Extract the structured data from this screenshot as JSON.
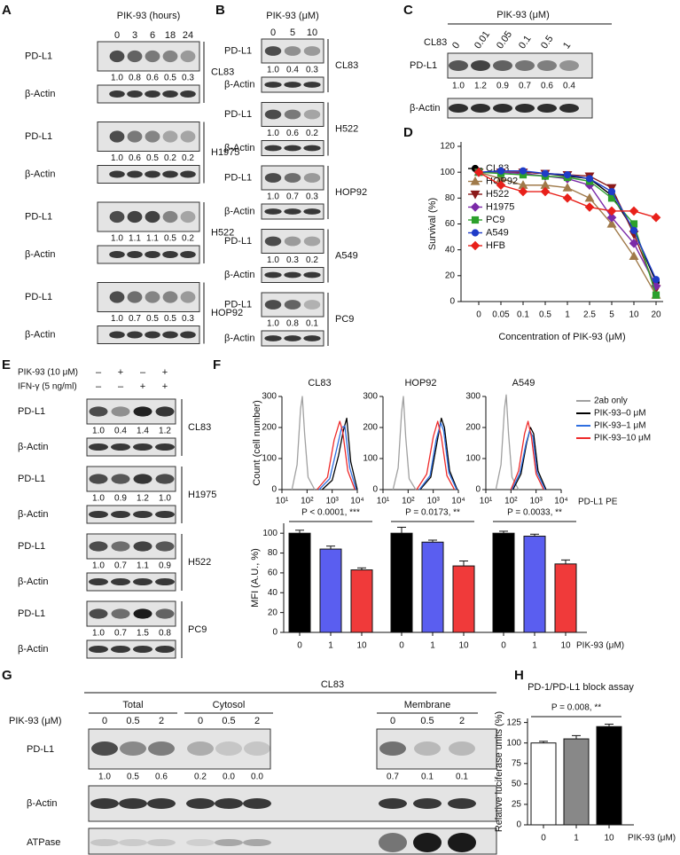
{
  "panel_labels": [
    "A",
    "B",
    "C",
    "D",
    "E",
    "F",
    "G",
    "H"
  ],
  "blot_a": {
    "header": "PIK-93 (hours)",
    "target": "PD-L1",
    "control": "β-Actin",
    "lanes": [
      "0",
      "3",
      "6",
      "18",
      "24"
    ],
    "groups": [
      {
        "cell": "CL83",
        "quant": [
          "1.0",
          "0.8",
          "0.6",
          "0.5",
          "0.3"
        ]
      },
      {
        "cell": "H1975",
        "quant": [
          "1.0",
          "0.6",
          "0.5",
          "0.2",
          "0.2"
        ]
      },
      {
        "cell": "H522",
        "quant": [
          "1.0",
          "1.1",
          "1.1",
          "0.5",
          "0.2"
        ]
      },
      {
        "cell": "HOP92",
        "quant": [
          "1.0",
          "0.7",
          "0.5",
          "0.5",
          "0.3"
        ]
      }
    ]
  },
  "blot_b": {
    "header": "PIK-93 (μM)",
    "target": "PD-L1",
    "control": "β-Actin",
    "lanes": [
      "0",
      "5",
      "10"
    ],
    "groups": [
      {
        "cell": "CL83",
        "quant": [
          "1.0",
          "0.4",
          "0.3"
        ]
      },
      {
        "cell": "H522",
        "quant": [
          "1.0",
          "0.6",
          "0.2"
        ]
      },
      {
        "cell": "HOP92",
        "quant": [
          "1.0",
          "0.7",
          "0.3"
        ]
      },
      {
        "cell": "A549",
        "quant": [
          "1.0",
          "0.3",
          "0.2"
        ]
      },
      {
        "cell": "PC9",
        "quant": [
          "1.0",
          "0.8",
          "0.1"
        ]
      }
    ]
  },
  "blot_c": {
    "header": "PIK-93 (μM)",
    "cell": "CL83",
    "target": "PD-L1",
    "control": "β-Actin",
    "lanes": [
      "0",
      "0.01",
      "0.05",
      "0.1",
      "0.5",
      "1"
    ],
    "quant": [
      "1.0",
      "1.2",
      "0.9",
      "0.7",
      "0.6",
      "0.4"
    ]
  },
  "blot_e": {
    "treatments": [
      {
        "label": "PIK-93 (10 μM)",
        "signs": [
          "–",
          "+",
          "–",
          "+"
        ]
      },
      {
        "label": "IFN-γ (5 ng/ml)",
        "signs": [
          "–",
          "–",
          "+",
          "+"
        ]
      }
    ],
    "target": "PD-L1",
    "control": "β-Actin",
    "groups": [
      {
        "cell": "CL83",
        "quant": [
          "1.0",
          "0.4",
          "1.4",
          "1.2"
        ]
      },
      {
        "cell": "H1975",
        "quant": [
          "1.0",
          "0.9",
          "1.2",
          "1.0"
        ]
      },
      {
        "cell": "H522",
        "quant": [
          "1.0",
          "0.7",
          "1.1",
          "0.9"
        ]
      },
      {
        "cell": "PC9",
        "quant": [
          "1.0",
          "0.7",
          "1.5",
          "0.8"
        ]
      }
    ]
  },
  "blot_g": {
    "title": "CL83",
    "dose_label": "PIK-93 (μM)",
    "fractions": [
      {
        "name": "Total",
        "lanes": [
          "0",
          "0.5",
          "2"
        ]
      },
      {
        "name": "Cytosol",
        "lanes": [
          "0",
          "0.5",
          "2"
        ]
      },
      {
        "name": "Membrane",
        "lanes": [
          "0",
          "0.5",
          "2"
        ]
      }
    ],
    "rows": [
      "PD-L1",
      "β-Actin",
      "ATPase"
    ],
    "quant": [
      "1.0",
      "0.5",
      "0.6",
      "0.2",
      "0.0",
      "0.0",
      "0.7",
      "0.1",
      "0.1"
    ]
  },
  "chart_data": [
    {
      "type": "line",
      "xlabel": "Concentration of PIK-93 (μM)",
      "ylabel": "Survival (%)",
      "categories": [
        "0",
        "0.05",
        "0.1",
        "0.5",
        "1",
        "2.5",
        "5",
        "10",
        "20"
      ],
      "ylim": [
        0,
        120
      ],
      "yticks": [
        0,
        20,
        40,
        60,
        80,
        100,
        120
      ],
      "series": [
        {
          "name": "CL83",
          "color": "#000000",
          "marker": "circle",
          "values": [
            100,
            100,
            100,
            99,
            97,
            95,
            82,
            55,
            15
          ]
        },
        {
          "name": "HOP92",
          "color": "#a07a4a",
          "marker": "triangle-up",
          "values": [
            100,
            95,
            90,
            90,
            88,
            80,
            60,
            35,
            5
          ]
        },
        {
          "name": "H522",
          "color": "#8b1a1a",
          "marker": "triangle-down",
          "values": [
            100,
            100,
            100,
            99,
            98,
            97,
            88,
            52,
            10
          ]
        },
        {
          "name": "H1975",
          "color": "#7b2aa8",
          "marker": "diamond",
          "values": [
            100,
            100,
            99,
            97,
            95,
            90,
            65,
            45,
            12
          ]
        },
        {
          "name": "PC9",
          "color": "#2ca02c",
          "marker": "square",
          "values": [
            100,
            99,
            98,
            97,
            96,
            93,
            80,
            60,
            5
          ]
        },
        {
          "name": "A549",
          "color": "#1f3cc8",
          "marker": "circle",
          "values": [
            100,
            101,
            101,
            99,
            98,
            95,
            85,
            55,
            17
          ]
        },
        {
          "name": "HFB",
          "color": "#e8201a",
          "marker": "diamond",
          "values": [
            100,
            90,
            85,
            85,
            80,
            73,
            70,
            70,
            65
          ]
        }
      ]
    },
    {
      "type": "density",
      "xlabel": "PD-L1 PE",
      "ylabel": "Count (cell number)",
      "log_x": true,
      "xlim": [
        10,
        10000
      ],
      "xticks": [
        {
          "value": 10,
          "label": "10¹"
        },
        {
          "value": 100,
          "label": "10²"
        },
        {
          "value": 1000,
          "label": "10³"
        },
        {
          "value": 10000,
          "label": "10⁴"
        }
      ],
      "ylim": [
        0,
        300
      ],
      "yticks": [
        0,
        100,
        200,
        300
      ],
      "series": [
        {
          "name": "2ab only",
          "color": "#a0a0a0"
        },
        {
          "name": "PIK-93–0 μM",
          "color": "#000000"
        },
        {
          "name": "PIK-93–1 μM",
          "color": "#2f6fe0"
        },
        {
          "name": "PIK-93–10 μM",
          "color": "#ee2a2a"
        }
      ],
      "panels": [
        {
          "title": "CL83",
          "curves": [
            {
              "x": [
                25,
                40,
                55,
                65,
                80,
                110,
                200
              ],
              "values": [
                0,
                80,
                260,
                300,
                180,
                40,
                0
              ]
            },
            {
              "x": [
                400,
                1000,
                1800,
                2800,
                3800,
                5500,
                10000
              ],
              "values": [
                0,
                30,
                110,
                190,
                230,
                90,
                0
              ]
            },
            {
              "x": [
                300,
                800,
                1500,
                2400,
                3200,
                5000,
                9000
              ],
              "values": [
                0,
                35,
                130,
                200,
                205,
                70,
                0
              ]
            },
            {
              "x": [
                250,
                650,
                1200,
                2000,
                2600,
                4200,
                8000
              ],
              "values": [
                0,
                40,
                160,
                220,
                190,
                60,
                0
              ]
            }
          ]
        },
        {
          "title": "HOP92",
          "curves": [
            {
              "x": [
                25,
                40,
                55,
                65,
                80,
                110,
                200
              ],
              "values": [
                0,
                70,
                250,
                300,
                170,
                35,
                0
              ]
            },
            {
              "x": [
                300,
                800,
                1400,
                2100,
                2800,
                4500,
                9000
              ],
              "values": [
                0,
                40,
                150,
                230,
                200,
                60,
                0
              ]
            },
            {
              "x": [
                280,
                750,
                1300,
                2000,
                2600,
                4200,
                8500
              ],
              "values": [
                0,
                45,
                160,
                215,
                190,
                55,
                0
              ]
            },
            {
              "x": [
                220,
                550,
                1000,
                1500,
                2100,
                3500,
                7000
              ],
              "values": [
                0,
                50,
                170,
                220,
                170,
                45,
                0
              ]
            }
          ]
        },
        {
          "title": "A549",
          "curves": [
            {
              "x": [
                25,
                40,
                55,
                65,
                80,
                110,
                200
              ],
              "values": [
                0,
                80,
                260,
                305,
                180,
                40,
                0
              ]
            },
            {
              "x": [
                120,
                250,
                420,
                600,
                800,
                1200,
                2500
              ],
              "values": [
                0,
                50,
                150,
                200,
                180,
                60,
                0
              ]
            },
            {
              "x": [
                110,
                230,
                400,
                560,
                750,
                1100,
                2300
              ],
              "values": [
                0,
                55,
                150,
                190,
                170,
                55,
                0
              ]
            },
            {
              "x": [
                100,
                200,
                350,
                480,
                650,
                1000,
                2000
              ],
              "values": [
                0,
                60,
                180,
                220,
                170,
                50,
                0
              ]
            }
          ]
        }
      ]
    },
    {
      "type": "bar",
      "xlabel": "PIK-93 (μM)",
      "ylabel": "MFI (A.U., %)",
      "annotations": [
        "P < 0.0001, ***",
        "P = 0.0173, **",
        "P = 0.0033, **"
      ],
      "categories": [
        "0",
        "1",
        "10",
        "0",
        "1",
        "10",
        "0",
        "1",
        "10"
      ],
      "values": [
        100,
        84,
        63,
        100,
        91,
        67,
        100,
        97,
        69
      ],
      "errors": [
        3,
        3,
        2,
        6,
        2,
        5,
        2,
        2,
        4
      ],
      "colors": [
        "#000000",
        "#5a5ef0",
        "#f03a3a"
      ],
      "ylim": [
        0,
        110
      ],
      "yticks": [
        0,
        20,
        40,
        60,
        80,
        100
      ]
    },
    {
      "type": "bar",
      "title": "PD-1/PD-L1 block assay",
      "xlabel": "PIK-93 (μM)",
      "ylabel": "Relative luciferase units (%)",
      "annotations": [
        "P = 0.008, **"
      ],
      "categories": [
        "0",
        "1",
        "10"
      ],
      "values": [
        100,
        105,
        120
      ],
      "errors": [
        2,
        4,
        3
      ],
      "colors": [
        "#ffffff",
        "#888888",
        "#000000"
      ],
      "ylim": [
        0,
        130
      ],
      "yticks": [
        0,
        25,
        50,
        75,
        100,
        125
      ]
    }
  ]
}
